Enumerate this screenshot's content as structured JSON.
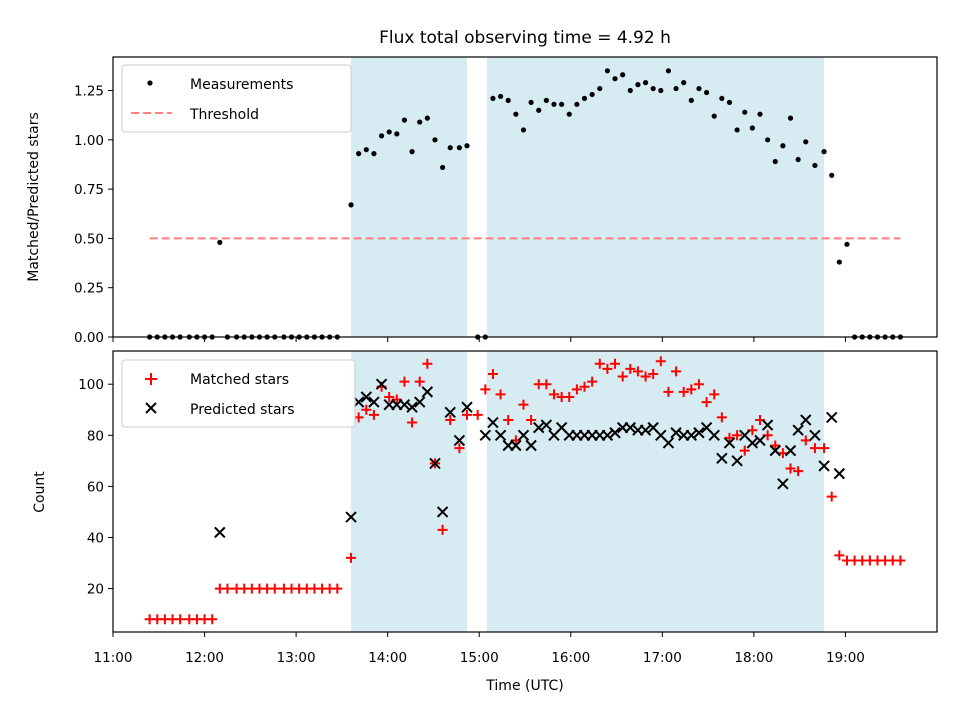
{
  "chart_data": [
    {
      "type": "scatter",
      "title": "Flux total observing time = 4.92 h",
      "ylabel": "Matched/Predicted stars",
      "xlabel": "",
      "xlim": [
        "11:00",
        "20:00"
      ],
      "ylim": [
        0,
        1.42
      ],
      "yticks": [
        "0.00",
        "0.25",
        "0.50",
        "0.75",
        "1.00",
        "1.25"
      ],
      "shaded_spans": [
        [
          "13:36",
          "14:52"
        ],
        [
          "15:05",
          "18:46"
        ]
      ],
      "legend": {
        "placement": "top-left",
        "entries": [
          "Measurements",
          "Threshold"
        ]
      },
      "threshold": {
        "name": "Threshold",
        "value": 0.5,
        "x_range": [
          "11:24",
          "19:36"
        ],
        "color": "#ff7f7f"
      },
      "series": [
        {
          "name": "Measurements",
          "color": "#000000",
          "x": [
            "11:24",
            "11:29",
            "11:34",
            "11:39",
            "11:44",
            "11:50",
            "11:55",
            "12:00",
            "12:05",
            "12:10",
            "12:15",
            "12:21",
            "12:26",
            "12:31",
            "12:36",
            "12:41",
            "12:46",
            "12:52",
            "12:57",
            "13:02",
            "13:07",
            "13:12",
            "13:17",
            "13:22",
            "13:27",
            "13:36",
            "13:41",
            "13:46",
            "13:51",
            "13:56",
            "14:01",
            "14:06",
            "14:11",
            "14:16",
            "14:21",
            "14:26",
            "14:31",
            "14:36",
            "14:41",
            "14:47",
            "14:52",
            "14:59",
            "15:04",
            "15:09",
            "15:14",
            "15:19",
            "15:24",
            "15:29",
            "15:34",
            "15:39",
            "15:44",
            "15:49",
            "15:54",
            "15:59",
            "16:04",
            "16:09",
            "16:14",
            "16:19",
            "16:24",
            "16:29",
            "16:34",
            "16:39",
            "16:44",
            "16:49",
            "16:54",
            "16:59",
            "17:04",
            "17:09",
            "17:14",
            "17:19",
            "17:24",
            "17:29",
            "17:34",
            "17:39",
            "17:44",
            "17:49",
            "17:54",
            "17:59",
            "18:04",
            "18:09",
            "18:14",
            "18:19",
            "18:24",
            "18:29",
            "18:34",
            "18:40",
            "18:46",
            "18:51",
            "18:56",
            "19:01",
            "19:06",
            "19:11",
            "19:16",
            "19:21",
            "19:26",
            "19:31",
            "19:36"
          ],
          "y": [
            0,
            0,
            0,
            0,
            0,
            0,
            0,
            0,
            0,
            0.48,
            0,
            0,
            0,
            0,
            0,
            0,
            0,
            0,
            0,
            0,
            0,
            0,
            0,
            0,
            0,
            0.67,
            0.93,
            0.95,
            0.93,
            1.02,
            1.04,
            1.03,
            1.1,
            0.94,
            1.09,
            1.11,
            1.0,
            0.86,
            0.96,
            0.96,
            0.97,
            0,
            0,
            1.21,
            1.22,
            1.2,
            1.13,
            1.05,
            1.19,
            1.15,
            1.2,
            1.18,
            1.18,
            1.13,
            1.18,
            1.21,
            1.23,
            1.26,
            1.35,
            1.31,
            1.33,
            1.25,
            1.28,
            1.29,
            1.26,
            1.25,
            1.35,
            1.26,
            1.29,
            1.2,
            1.26,
            1.24,
            1.12,
            1.21,
            1.19,
            1.05,
            1.14,
            1.06,
            1.13,
            1.0,
            0.89,
            0.97,
            1.11,
            0.9,
            0.99,
            0.87,
            0.94,
            0.82,
            0.38,
            0.47,
            0,
            0,
            0,
            0,
            0,
            0,
            0
          ]
        }
      ]
    },
    {
      "type": "scatter",
      "title": "",
      "xlabel": "Time (UTC)",
      "ylabel": "Count",
      "xlim": [
        "11:00",
        "20:00"
      ],
      "ylim": [
        3,
        113
      ],
      "xticks": [
        "11:00",
        "12:00",
        "13:00",
        "14:00",
        "15:00",
        "16:00",
        "17:00",
        "18:00",
        "19:00"
      ],
      "yticks": [
        "20",
        "40",
        "60",
        "80",
        "100"
      ],
      "shaded_spans": [
        [
          "13:36",
          "14:52"
        ],
        [
          "15:05",
          "18:46"
        ]
      ],
      "legend": {
        "placement": "top-left",
        "entries": [
          "Matched stars",
          "Predicted stars"
        ]
      },
      "series": [
        {
          "name": "Matched stars",
          "marker": "plus",
          "color": "#ff0000",
          "x": [
            "11:24",
            "11:29",
            "11:34",
            "11:39",
            "11:44",
            "11:50",
            "11:55",
            "12:00",
            "12:05",
            "12:10",
            "12:15",
            "12:21",
            "12:26",
            "12:31",
            "12:36",
            "12:41",
            "12:46",
            "12:52",
            "12:57",
            "13:02",
            "13:07",
            "13:12",
            "13:17",
            "13:22",
            "13:27",
            "13:36",
            "13:41",
            "13:46",
            "13:51",
            "13:56",
            "14:01",
            "14:06",
            "14:11",
            "14:16",
            "14:21",
            "14:26",
            "14:31",
            "14:36",
            "14:41",
            "14:47",
            "14:52",
            "14:59",
            "15:04",
            "15:09",
            "15:14",
            "15:19",
            "15:24",
            "15:29",
            "15:34",
            "15:39",
            "15:44",
            "15:49",
            "15:54",
            "15:59",
            "16:04",
            "16:09",
            "16:14",
            "16:19",
            "16:24",
            "16:29",
            "16:34",
            "16:39",
            "16:44",
            "16:49",
            "16:54",
            "16:59",
            "17:04",
            "17:09",
            "17:14",
            "17:19",
            "17:24",
            "17:29",
            "17:34",
            "17:39",
            "17:44",
            "17:49",
            "17:54",
            "17:59",
            "18:04",
            "18:09",
            "18:14",
            "18:19",
            "18:24",
            "18:29",
            "18:34",
            "18:40",
            "18:46",
            "18:51",
            "18:56",
            "19:01",
            "19:06",
            "19:11",
            "19:16",
            "19:21",
            "19:26",
            "19:31",
            "19:36"
          ],
          "y": [
            8,
            8,
            8,
            8,
            8,
            8,
            8,
            8,
            8,
            20,
            20,
            20,
            20,
            20,
            20,
            20,
            20,
            20,
            20,
            20,
            20,
            20,
            20,
            20,
            20,
            32,
            87,
            90,
            88,
            99,
            95,
            94,
            101,
            85,
            101,
            108,
            69,
            43,
            86,
            75,
            88,
            88,
            98,
            104,
            96,
            86,
            78,
            92,
            86,
            100,
            100,
            96,
            95,
            95,
            98,
            99,
            101,
            108,
            106,
            108,
            103,
            106,
            105,
            103,
            104,
            109,
            97,
            105,
            97,
            98,
            100,
            93,
            96,
            87,
            79,
            80,
            74,
            82,
            86,
            80,
            76,
            73,
            67,
            66,
            78,
            75,
            75,
            56,
            33,
            31,
            31,
            31,
            31,
            31,
            31,
            31,
            31
          ]
        },
        {
          "name": "Predicted stars",
          "marker": "x",
          "color": "#000000",
          "x": [
            "12:10",
            "13:36",
            "13:41",
            "13:46",
            "13:51",
            "13:56",
            "14:01",
            "14:06",
            "14:11",
            "14:16",
            "14:21",
            "14:26",
            "14:31",
            "14:36",
            "14:41",
            "14:47",
            "14:52",
            "15:04",
            "15:09",
            "15:14",
            "15:19",
            "15:24",
            "15:29",
            "15:34",
            "15:39",
            "15:44",
            "15:49",
            "15:54",
            "15:59",
            "16:04",
            "16:09",
            "16:14",
            "16:19",
            "16:24",
            "16:29",
            "16:34",
            "16:39",
            "16:44",
            "16:49",
            "16:54",
            "16:59",
            "17:04",
            "17:09",
            "17:14",
            "17:19",
            "17:24",
            "17:29",
            "17:34",
            "17:39",
            "17:44",
            "17:49",
            "17:54",
            "17:59",
            "18:04",
            "18:09",
            "18:14",
            "18:19",
            "18:24",
            "18:29",
            "18:34",
            "18:40",
            "18:46",
            "18:51",
            "18:56"
          ],
          "y": [
            42,
            48,
            93,
            95,
            93,
            100,
            92,
            92,
            92,
            91,
            93,
            97,
            69,
            50,
            89,
            78,
            91,
            80,
            85,
            80,
            76,
            76,
            80,
            76,
            83,
            84,
            80,
            83,
            80,
            80,
            80,
            80,
            80,
            80,
            81,
            83,
            83,
            82,
            82,
            83,
            80,
            77,
            81,
            80,
            80,
            81,
            83,
            80,
            71,
            77,
            70,
            80,
            77,
            78,
            84,
            74,
            61,
            74,
            82,
            86,
            80,
            68,
            87,
            65
          ]
        }
      ]
    }
  ]
}
